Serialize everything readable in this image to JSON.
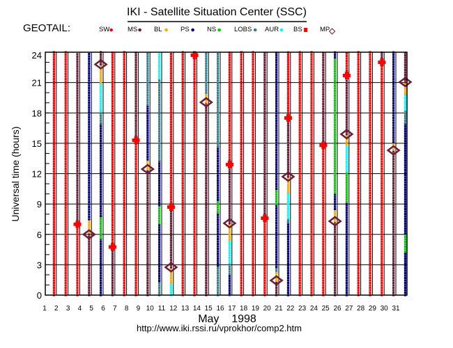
{
  "title": "IKI - Satellite Situation Center (SSC)",
  "satellite_label": "GEOTAIL:",
  "footer": {
    "month_year": "May    1998",
    "url": "http://www.iki.rssi.ru/vprokhor/comp2.htm"
  },
  "colors": {
    "SW": "#ff0000",
    "MS": "#6e1c34",
    "BL": "#ffaa00",
    "PS": "#000080",
    "NS": "#00cc00",
    "LOBS": "#2f7f8c",
    "AUR": "#00ffff",
    "BS": "#ff0000",
    "MP": "#6e1c34"
  },
  "chart_data": {
    "type": "scatter",
    "title": "IKI - Satellite Situation Center (SSC)",
    "xlabel": "May    1998",
    "ylabel": "Universal time (hours)",
    "xlim": [
      1,
      32
    ],
    "ylim": [
      0,
      24
    ],
    "x_ticks": [
      1,
      2,
      3,
      4,
      5,
      6,
      7,
      8,
      9,
      10,
      11,
      12,
      13,
      14,
      15,
      16,
      17,
      18,
      19,
      20,
      21,
      22,
      23,
      24,
      25,
      26,
      27,
      28,
      29,
      30,
      31
    ],
    "y_ticks": [
      0,
      3,
      6,
      9,
      12,
      15,
      18,
      21,
      24
    ],
    "grid": true,
    "legend_position": "top",
    "legend": [
      {
        "key": "SW",
        "label": "SW",
        "marker": "dot"
      },
      {
        "key": "MS",
        "label": "MS",
        "marker": "dot"
      },
      {
        "key": "BL",
        "label": "BL",
        "marker": "dot"
      },
      {
        "key": "PS",
        "label": "PS",
        "marker": "dot"
      },
      {
        "key": "NS",
        "label": "NS",
        "marker": "dot"
      },
      {
        "key": "LOBS",
        "label": "LOBS",
        "marker": "dot"
      },
      {
        "key": "AUR",
        "label": "AUR",
        "marker": "dot"
      },
      {
        "key": "BS",
        "label": "BS",
        "marker": "cross"
      },
      {
        "key": "MP",
        "label": "MP",
        "marker": "diamond"
      }
    ],
    "days": [
      {
        "day": 1,
        "segments": [
          [
            "SW",
            0,
            24
          ]
        ],
        "bs": [],
        "mp": []
      },
      {
        "day": 2,
        "segments": [
          [
            "SW",
            0,
            24
          ]
        ],
        "bs": [],
        "mp": []
      },
      {
        "day": 3,
        "segments": [
          [
            "SW",
            0,
            7.0
          ],
          [
            "MS",
            7.0,
            24
          ]
        ],
        "bs": [
          7.0
        ],
        "mp": []
      },
      {
        "day": 4,
        "segments": [
          [
            "MS",
            0,
            6.0
          ],
          [
            "BL",
            6.2,
            7.5
          ],
          [
            "PS",
            7.5,
            24
          ]
        ],
        "bs": [],
        "mp": [
          6.0
        ]
      },
      {
        "day": 5,
        "segments": [
          [
            "PS",
            0,
            5.6
          ],
          [
            "NS",
            5.6,
            7.8
          ],
          [
            "PS",
            7.8,
            17.0
          ],
          [
            "LOBS",
            17.0,
            18.2
          ],
          [
            "AUR",
            18.2,
            21.0
          ],
          [
            "BL",
            21.0,
            22.8
          ],
          [
            "MS",
            22.8,
            24
          ]
        ],
        "bs": [],
        "mp": [
          22.8
        ]
      },
      {
        "day": 6,
        "segments": [
          [
            "MS",
            0,
            4.75
          ],
          [
            "SW",
            4.75,
            24
          ]
        ],
        "bs": [
          4.75
        ],
        "mp": []
      },
      {
        "day": 7,
        "segments": [
          [
            "SW",
            0,
            24
          ]
        ],
        "bs": [],
        "mp": []
      },
      {
        "day": 8,
        "segments": [
          [
            "SW",
            0,
            15.3
          ],
          [
            "MS",
            15.3,
            24
          ]
        ],
        "bs": [
          15.3
        ],
        "mp": []
      },
      {
        "day": 9,
        "segments": [
          [
            "MS",
            0,
            12.45
          ],
          [
            "BL",
            12.5,
            13.4
          ],
          [
            "PS",
            13.4,
            18.8
          ],
          [
            "LOBS",
            18.8,
            24
          ]
        ],
        "bs": [],
        "mp": [
          12.45
        ]
      },
      {
        "day": 10,
        "segments": [
          [
            "LOBS",
            0,
            1.4
          ],
          [
            "PS",
            1.4,
            7.1
          ],
          [
            "NS",
            7.1,
            8.9
          ],
          [
            "PS",
            8.9,
            13.3
          ],
          [
            "LOBS",
            13.3,
            21.4
          ],
          [
            "AUR",
            21.4,
            24
          ]
        ],
        "bs": [],
        "mp": []
      },
      {
        "day": 11,
        "segments": [
          [
            "AUR",
            0,
            1.2
          ],
          [
            "BL",
            1.2,
            2.75
          ],
          [
            "MS",
            2.75,
            8.7
          ],
          [
            "SW",
            8.7,
            24
          ]
        ],
        "bs": [
          8.7
        ],
        "mp": [
          2.75
        ]
      },
      {
        "day": 12,
        "segments": [
          [
            "SW",
            0,
            24
          ]
        ],
        "bs": [],
        "mp": []
      },
      {
        "day": 13,
        "segments": [
          [
            "SW",
            0,
            24
          ]
        ],
        "bs": [
          23.7
        ],
        "mp": []
      },
      {
        "day": 14,
        "segments": [
          [
            "MS",
            0,
            19.05
          ],
          [
            "BL",
            19.05,
            20.0
          ],
          [
            "LOBS",
            20.0,
            24
          ]
        ],
        "bs": [],
        "mp": [
          19.05
        ]
      },
      {
        "day": 15,
        "segments": [
          [
            "LOBS",
            0,
            2.9
          ],
          [
            "PS",
            2.9,
            8.2
          ],
          [
            "NS",
            8.2,
            9.4
          ],
          [
            "PS",
            9.4,
            14.7
          ],
          [
            "LOBS",
            14.7,
            24
          ]
        ],
        "bs": [],
        "mp": []
      },
      {
        "day": 16,
        "segments": [
          [
            "LOBS",
            0,
            0.2
          ],
          [
            "PS",
            0.2,
            2.1
          ],
          [
            "LOBS",
            2.1,
            3.2
          ],
          [
            "AUR",
            3.2,
            5.5
          ],
          [
            "BL",
            5.5,
            7.1
          ],
          [
            "MS",
            7.1,
            12.9
          ],
          [
            "SW",
            12.9,
            24
          ]
        ],
        "bs": [
          12.9
        ],
        "mp": [
          7.1
        ]
      },
      {
        "day": 17,
        "segments": [
          [
            "SW",
            0,
            24
          ]
        ],
        "bs": [],
        "mp": []
      },
      {
        "day": 18,
        "segments": [
          [
            "SW",
            0,
            24
          ]
        ],
        "bs": [],
        "mp": []
      },
      {
        "day": 19,
        "segments": [
          [
            "SW",
            0,
            7.6
          ],
          [
            "MS",
            7.6,
            24
          ]
        ],
        "bs": [
          7.6
        ],
        "mp": []
      },
      {
        "day": 20,
        "segments": [
          [
            "MS",
            0,
            1.45
          ],
          [
            "BL",
            1.45,
            2.4
          ],
          [
            "LOBS",
            2.4,
            2.8
          ],
          [
            "PS",
            2.8,
            9.0
          ],
          [
            "NS",
            9.0,
            10.5
          ],
          [
            "PS",
            10.5,
            24
          ]
        ],
        "bs": [],
        "mp": [
          1.45
        ]
      },
      {
        "day": 21,
        "segments": [
          [
            "PS",
            0,
            7.2
          ],
          [
            "LOBS",
            7.2,
            7.6
          ],
          [
            "AUR",
            7.6,
            10.2
          ],
          [
            "BL",
            10.2,
            11.7
          ],
          [
            "MS",
            11.7,
            17.5
          ],
          [
            "SW",
            17.5,
            24
          ]
        ],
        "bs": [
          17.5
        ],
        "mp": [
          11.7
        ]
      },
      {
        "day": 22,
        "segments": [
          [
            "SW",
            0,
            24
          ]
        ],
        "bs": [],
        "mp": []
      },
      {
        "day": 23,
        "segments": [
          [
            "SW",
            0,
            24
          ]
        ],
        "bs": [],
        "mp": []
      },
      {
        "day": 24,
        "segments": [
          [
            "SW",
            0,
            14.8
          ],
          [
            "MS",
            14.8,
            24
          ]
        ],
        "bs": [
          14.8
        ],
        "mp": []
      },
      {
        "day": 25,
        "segments": [
          [
            "MS",
            0,
            7.3
          ],
          [
            "BL",
            7.3,
            8.5
          ],
          [
            "PS",
            8.5,
            10.1
          ],
          [
            "NS",
            10.1,
            23.5
          ],
          [
            "PS",
            23.5,
            24
          ]
        ],
        "bs": [],
        "mp": [
          7.3
        ]
      },
      {
        "day": 26,
        "segments": [
          [
            "PS",
            0,
            9.2
          ],
          [
            "NS",
            9.2,
            12.2
          ],
          [
            "AUR",
            12.2,
            14.9
          ],
          [
            "BL",
            14.9,
            15.9
          ],
          [
            "MS",
            15.9,
            21.7
          ],
          [
            "SW",
            21.7,
            24
          ]
        ],
        "bs": [
          21.7
        ],
        "mp": [
          15.9
        ]
      },
      {
        "day": 27,
        "segments": [
          [
            "SW",
            0,
            24
          ]
        ],
        "bs": [],
        "mp": []
      },
      {
        "day": 28,
        "segments": [
          [
            "SW",
            0,
            24
          ]
        ],
        "bs": [],
        "mp": []
      },
      {
        "day": 29,
        "segments": [
          [
            "SW",
            0,
            23.0
          ],
          [
            "MS",
            23.0,
            24
          ]
        ],
        "bs": [
          23.0
        ],
        "mp": []
      },
      {
        "day": 30,
        "segments": [
          [
            "MS",
            0,
            14.3
          ],
          [
            "BL",
            14.4,
            15.1
          ],
          [
            "PS",
            15.1,
            24
          ]
        ],
        "bs": [],
        "mp": [
          14.3
        ]
      },
      {
        "day": 31,
        "segments": [
          [
            "PS",
            0,
            4.3
          ],
          [
            "NS",
            4.3,
            6.1
          ],
          [
            "PS",
            6.1,
            17.0
          ],
          [
            "LOBS",
            17.0,
            18.3
          ],
          [
            "AUR",
            18.3,
            19.9
          ],
          [
            "BL",
            19.9,
            21.05
          ],
          [
            "MS",
            21.05,
            24
          ]
        ],
        "bs": [],
        "mp": [
          21.05
        ]
      }
    ]
  }
}
